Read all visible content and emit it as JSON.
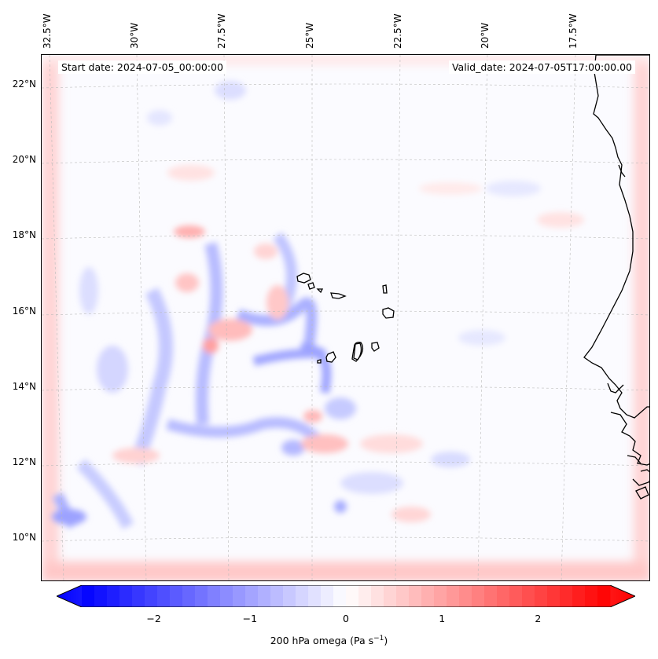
{
  "header": {
    "start_date": "Start date: 2024-07-05_00:00:00",
    "valid_date": "Valid_date: 2024-07-05T17:00:00.00"
  },
  "axes": {
    "lon_labels": [
      "32.5°W",
      "30°W",
      "27.5°W",
      "25°W",
      "22.5°W",
      "20°W",
      "17.5°W"
    ],
    "lat_labels": [
      "22°N",
      "20°N",
      "18°N",
      "16°N",
      "14°N",
      "12°N",
      "10°N"
    ]
  },
  "colorbar": {
    "ticks": [
      "−2",
      "−1",
      "0",
      "1",
      "2"
    ],
    "label_prefix": "200 hPa omega (Pa s",
    "label_exponent": "−1",
    "label_suffix": ")",
    "range": [
      -2.75,
      2.75
    ],
    "colors": {
      "negative": "#0000ff",
      "zero": "#ffffff",
      "positive": "#ff0000"
    }
  },
  "map": {
    "features": [
      "cape-verde-islands",
      "west-africa-coastline"
    ],
    "colormap": "bwr"
  }
}
